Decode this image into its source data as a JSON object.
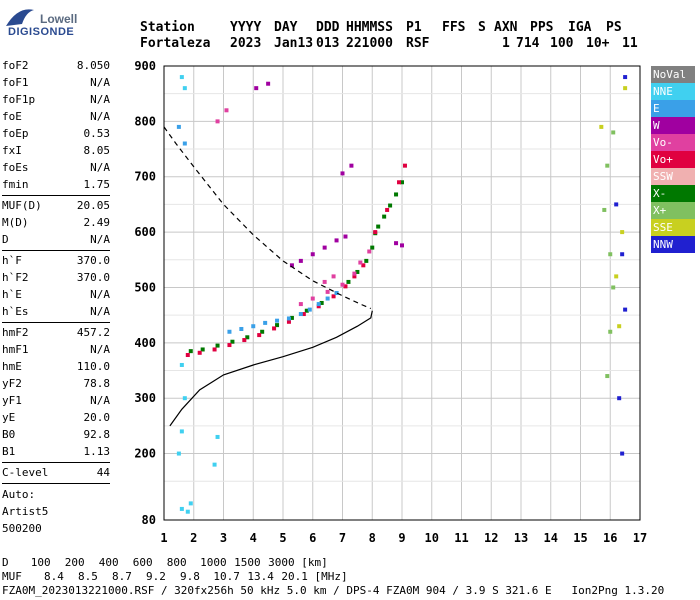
{
  "logo": {
    "line1": "Lowell",
    "line2": "DIGISONDE"
  },
  "header": {
    "row1": [
      "Station",
      "YYYY",
      "DAY",
      "DDD",
      "HHMMSS",
      "P1",
      "FFS",
      "S",
      "AXN",
      "PPS",
      "IGA",
      "PS"
    ],
    "row2": [
      "Fortaleza",
      "2023",
      "Jan13",
      "013",
      "221000",
      "RSF",
      "",
      "1",
      "714",
      "100",
      "10+",
      "11"
    ]
  },
  "params": {
    "group1": [
      {
        "label": "foF2",
        "value": "8.050"
      },
      {
        "label": "foF1",
        "value": "N/A"
      },
      {
        "label": "foF1p",
        "value": "N/A"
      },
      {
        "label": "foE",
        "value": "N/A"
      },
      {
        "label": "foEp",
        "value": "0.53"
      },
      {
        "label": "fxI",
        "value": "8.05"
      },
      {
        "label": "foEs",
        "value": "N/A"
      },
      {
        "label": "fmin",
        "value": "1.75"
      }
    ],
    "group2": [
      {
        "label": "MUF(D)",
        "value": "20.05"
      },
      {
        "label": "M(D)",
        "value": "2.49"
      },
      {
        "label": "D",
        "value": "N/A"
      }
    ],
    "group3": [
      {
        "label": "h`F",
        "value": "370.0"
      },
      {
        "label": "h`F2",
        "value": "370.0"
      },
      {
        "label": "h`E",
        "value": "N/A"
      },
      {
        "label": "h`Es",
        "value": "N/A"
      }
    ],
    "group4": [
      {
        "label": "hmF2",
        "value": "457.2"
      },
      {
        "label": "hmF1",
        "value": "N/A"
      },
      {
        "label": "hmE",
        "value": "110.0"
      },
      {
        "label": "yF2",
        "value": "78.8"
      },
      {
        "label": "yF1",
        "value": "N/A"
      },
      {
        "label": "yE",
        "value": "20.0"
      },
      {
        "label": "B0",
        "value": "92.8"
      },
      {
        "label": "B1",
        "value": "1.13"
      }
    ],
    "group5": [
      {
        "label": "C-level",
        "value": "44"
      }
    ],
    "auto": [
      "Auto:",
      "Artist5",
      "500200"
    ]
  },
  "legend": [
    {
      "label": "NoVal",
      "color": "#808080"
    },
    {
      "label": "NNE",
      "color": "#40d0f0"
    },
    {
      "label": "E",
      "color": "#3aa0e8"
    },
    {
      "label": "W",
      "color": "#a000a0"
    },
    {
      "label": "Vo-",
      "color": "#e040a0"
    },
    {
      "label": "Vo+",
      "color": "#e00040"
    },
    {
      "label": "SSW",
      "color": "#f0b0b0"
    },
    {
      "label": "X-",
      "color": "#007800"
    },
    {
      "label": "X+",
      "color": "#80c060"
    },
    {
      "label": "SSE",
      "color": "#c8d020"
    },
    {
      "label": "NNW",
      "color": "#2020d0"
    }
  ],
  "footer": {
    "dist_label": "D",
    "dist_values": [
      "100",
      "200",
      "400",
      "600",
      "800",
      "1000",
      "1500",
      "3000"
    ],
    "dist_unit": "[km]",
    "muf_label": "MUF",
    "muf_values": [
      "8.4",
      "8.5",
      "8.7",
      "9.2",
      "9.8",
      "10.7",
      "13.4",
      "20.1"
    ],
    "muf_unit": "[MHz]",
    "info": "FZA0M_2023013221000.RSF / 320fx256h 50 kHz 5.0 km / DPS-4 FZA0M 904 / 3.9 S 321.6 E   Ion2Png 1.3.20"
  },
  "chart_data": {
    "type": "scatter",
    "xlim": [
      1,
      17
    ],
    "ylim": [
      80,
      900
    ],
    "x_ticks": [
      1,
      2,
      3,
      4,
      5,
      6,
      7,
      8,
      9,
      10,
      11,
      12,
      13,
      14,
      15,
      16,
      17
    ],
    "y_ticks": [
      80,
      200,
      300,
      400,
      500,
      600,
      700,
      800,
      900
    ],
    "grid": true,
    "legend_position": "right",
    "series": [
      {
        "name": "X-",
        "color": "#007800",
        "points": [
          [
            1.9,
            385
          ],
          [
            2.3,
            388
          ],
          [
            2.8,
            395
          ],
          [
            3.3,
            402
          ],
          [
            3.8,
            410
          ],
          [
            4.3,
            420
          ],
          [
            4.8,
            432
          ],
          [
            5.3,
            445
          ],
          [
            5.8,
            458
          ],
          [
            6.3,
            472
          ],
          [
            6.8,
            490
          ],
          [
            7.2,
            510
          ],
          [
            7.5,
            528
          ],
          [
            7.8,
            548
          ],
          [
            8.0,
            572
          ],
          [
            8.1,
            598
          ],
          [
            8.2,
            610
          ],
          [
            8.4,
            628
          ],
          [
            8.6,
            648
          ],
          [
            8.8,
            668
          ],
          [
            9.0,
            690
          ]
        ]
      },
      {
        "name": "Vo+",
        "color": "#e00040",
        "points": [
          [
            1.8,
            378
          ],
          [
            2.2,
            382
          ],
          [
            2.7,
            388
          ],
          [
            3.2,
            396
          ],
          [
            3.7,
            405
          ],
          [
            4.2,
            414
          ],
          [
            4.7,
            426
          ],
          [
            5.2,
            438
          ],
          [
            5.7,
            452
          ],
          [
            6.2,
            466
          ],
          [
            6.7,
            484
          ],
          [
            7.1,
            502
          ],
          [
            7.4,
            520
          ],
          [
            7.7,
            540
          ],
          [
            8.1,
            600
          ],
          [
            8.5,
            640
          ],
          [
            8.9,
            690
          ],
          [
            9.1,
            720
          ]
        ]
      },
      {
        "name": "Vo-",
        "color": "#e040a0",
        "points": [
          [
            5.6,
            470
          ],
          [
            6.0,
            480
          ],
          [
            6.5,
            492
          ],
          [
            7.0,
            505
          ],
          [
            7.4,
            525
          ],
          [
            7.6,
            545
          ],
          [
            7.9,
            565
          ],
          [
            2.8,
            800
          ],
          [
            3.1,
            820
          ],
          [
            6.4,
            510
          ],
          [
            6.7,
            520
          ]
        ]
      },
      {
        "name": "W",
        "color": "#a000a0",
        "points": [
          [
            5.3,
            540
          ],
          [
            5.6,
            548
          ],
          [
            6.0,
            560
          ],
          [
            6.4,
            572
          ],
          [
            6.8,
            585
          ],
          [
            7.1,
            592
          ],
          [
            4.1,
            860
          ],
          [
            4.5,
            868
          ],
          [
            7.0,
            706
          ],
          [
            7.3,
            720
          ],
          [
            8.8,
            580
          ],
          [
            9.0,
            576
          ]
        ]
      },
      {
        "name": "E",
        "color": "#3aa0e8",
        "points": [
          [
            3.2,
            420
          ],
          [
            3.6,
            425
          ],
          [
            4.0,
            430
          ],
          [
            4.4,
            436
          ],
          [
            4.8,
            440
          ],
          [
            5.2,
            444
          ],
          [
            5.6,
            452
          ],
          [
            5.9,
            460
          ],
          [
            6.2,
            470
          ],
          [
            6.5,
            480
          ],
          [
            6.8,
            490
          ],
          [
            1.5,
            790
          ],
          [
            1.7,
            760
          ]
        ]
      },
      {
        "name": "NNE",
        "color": "#40d0f0",
        "points": [
          [
            1.6,
            100
          ],
          [
            1.8,
            95
          ],
          [
            1.9,
            110
          ],
          [
            1.5,
            200
          ],
          [
            1.6,
            240
          ],
          [
            1.7,
            300
          ],
          [
            1.6,
            360
          ],
          [
            1.7,
            860
          ],
          [
            1.6,
            880
          ],
          [
            2.7,
            180
          ],
          [
            2.8,
            230
          ]
        ]
      },
      {
        "name": "X+",
        "color": "#80c060",
        "points": [
          [
            15.9,
            340
          ],
          [
            16.0,
            420
          ],
          [
            16.1,
            500
          ],
          [
            16.0,
            560
          ],
          [
            15.8,
            640
          ],
          [
            15.9,
            720
          ],
          [
            16.1,
            780
          ]
        ]
      },
      {
        "name": "SSE",
        "color": "#c8d020",
        "points": [
          [
            16.3,
            430
          ],
          [
            16.2,
            520
          ],
          [
            16.4,
            600
          ],
          [
            15.7,
            790
          ],
          [
            16.5,
            860
          ]
        ]
      },
      {
        "name": "NNW",
        "color": "#2020d0",
        "points": [
          [
            16.4,
            200
          ],
          [
            16.3,
            300
          ],
          [
            16.5,
            460
          ],
          [
            16.4,
            560
          ],
          [
            16.2,
            650
          ],
          [
            16.5,
            880
          ]
        ]
      }
    ],
    "profile_curve": [
      [
        1.2,
        250
      ],
      [
        1.6,
        280
      ],
      [
        2.2,
        315
      ],
      [
        3.0,
        342
      ],
      [
        4.0,
        360
      ],
      [
        5.0,
        375
      ],
      [
        6.0,
        392
      ],
      [
        6.8,
        410
      ],
      [
        7.5,
        430
      ],
      [
        7.95,
        445
      ],
      [
        8.0,
        458
      ]
    ],
    "dashed_curve": [
      [
        1.0,
        790
      ],
      [
        1.4,
        760
      ],
      [
        2.0,
        718
      ],
      [
        3.0,
        650
      ],
      [
        4.0,
        595
      ],
      [
        5.0,
        548
      ],
      [
        6.0,
        512
      ],
      [
        7.0,
        485
      ],
      [
        7.6,
        470
      ],
      [
        7.95,
        462
      ]
    ]
  }
}
